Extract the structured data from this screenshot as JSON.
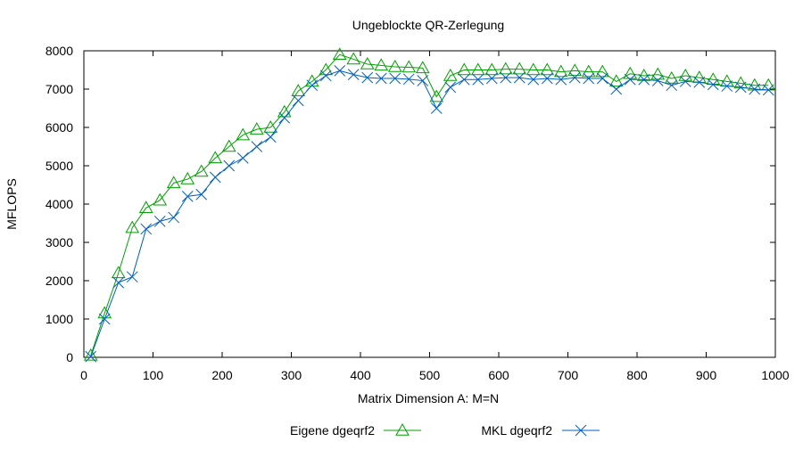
{
  "chart_data": {
    "type": "line",
    "title": "Ungeblockte QR-Zerlegung",
    "xlabel": "Matrix Dimension A: M=N",
    "ylabel": "MFLOPS",
    "xlim": [
      0,
      1000
    ],
    "ylim": [
      0,
      8000
    ],
    "xticks": [
      0,
      100,
      200,
      300,
      400,
      500,
      600,
      700,
      800,
      900,
      1000
    ],
    "yticks": [
      0,
      1000,
      2000,
      3000,
      4000,
      5000,
      6000,
      7000,
      8000
    ],
    "grid": false,
    "legend_position": "bottom",
    "x": [
      10,
      30,
      50,
      70,
      90,
      110,
      130,
      150,
      170,
      190,
      210,
      230,
      250,
      270,
      290,
      310,
      330,
      350,
      370,
      390,
      410,
      430,
      450,
      470,
      490,
      510,
      530,
      550,
      570,
      590,
      610,
      630,
      650,
      670,
      690,
      710,
      730,
      750,
      770,
      790,
      810,
      830,
      850,
      870,
      890,
      910,
      930,
      950,
      970,
      990
    ],
    "series": [
      {
        "name": "Eigene dgeqrf2",
        "color": "#00a000",
        "marker": "triangle",
        "values": [
          50,
          1150,
          2200,
          3380,
          3900,
          4100,
          4550,
          4650,
          4850,
          5200,
          5500,
          5800,
          5950,
          6000,
          6400,
          6950,
          7200,
          7500,
          7900,
          7780,
          7650,
          7620,
          7580,
          7570,
          7550,
          6800,
          7350,
          7500,
          7500,
          7500,
          7520,
          7520,
          7500,
          7500,
          7450,
          7480,
          7450,
          7450,
          7200,
          7400,
          7350,
          7380,
          7280,
          7350,
          7300,
          7250,
          7200,
          7150,
          7100,
          7100
        ]
      },
      {
        "name": "MKL dgeqrf2",
        "color": "#0060c0",
        "marker": "x",
        "values": [
          20,
          1000,
          1950,
          2100,
          3350,
          3550,
          3650,
          4200,
          4250,
          4700,
          5000,
          5200,
          5500,
          5750,
          6250,
          6700,
          7100,
          7350,
          7480,
          7380,
          7300,
          7280,
          7280,
          7260,
          7220,
          6500,
          7050,
          7250,
          7250,
          7280,
          7300,
          7300,
          7250,
          7280,
          7250,
          7300,
          7280,
          7280,
          7000,
          7250,
          7250,
          7220,
          7100,
          7200,
          7180,
          7120,
          7080,
          7050,
          7000,
          6980
        ]
      }
    ]
  }
}
